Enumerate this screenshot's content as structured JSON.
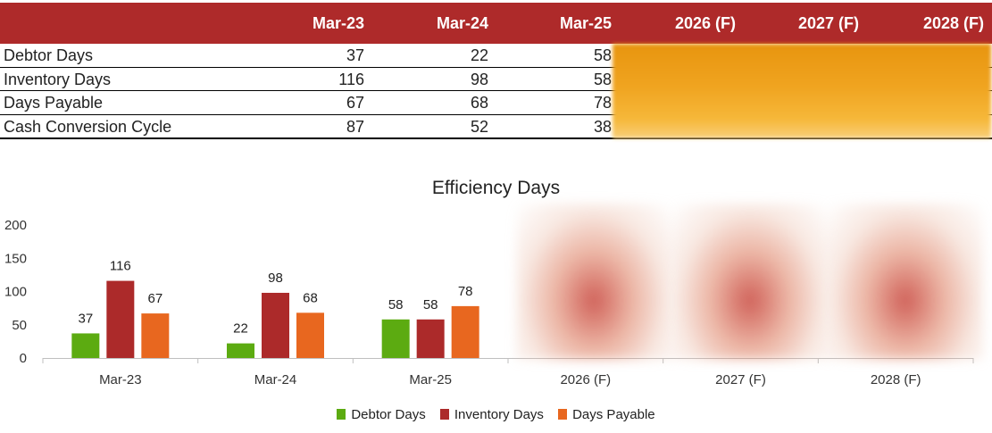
{
  "table": {
    "headers": [
      "Mar-23",
      "Mar-24",
      "Mar-25",
      "2026 (F)",
      "2027 (F)",
      "2028 (F)"
    ],
    "rows": [
      {
        "label": "Debtor Days",
        "values": [
          "37",
          "22",
          "58"
        ]
      },
      {
        "label": "Inventory Days",
        "values": [
          "116",
          "98",
          "58"
        ]
      },
      {
        "label": "Days Payable",
        "values": [
          "67",
          "68",
          "78"
        ]
      },
      {
        "label": "Cash Conversion Cycle",
        "values": [
          "87",
          "52",
          "38"
        ]
      }
    ],
    "redacted_color": "#f0a420",
    "header_color": "#ae2a2a"
  },
  "chart_data": {
    "type": "bar",
    "title": "Efficiency Days",
    "categories": [
      "Mar-23",
      "Mar-24",
      "Mar-25",
      "2026 (F)",
      "2027 (F)",
      "2028 (F)"
    ],
    "series": [
      {
        "name": "Debtor Days",
        "color": "#5cab11",
        "values": [
          37,
          22,
          58,
          null,
          null,
          null
        ]
      },
      {
        "name": "Inventory Days",
        "color": "#ac2a2a",
        "values": [
          116,
          98,
          58,
          null,
          null,
          null
        ]
      },
      {
        "name": "Days Payable",
        "color": "#e8671f",
        "values": [
          67,
          68,
          78,
          null,
          null,
          null
        ]
      }
    ],
    "ylim": [
      0,
      200
    ],
    "yticks": [
      0,
      50,
      100,
      150,
      200
    ],
    "grid": false,
    "legend": "bottom",
    "redacted_categories": [
      "2026 (F)",
      "2027 (F)",
      "2028 (F)"
    ]
  }
}
